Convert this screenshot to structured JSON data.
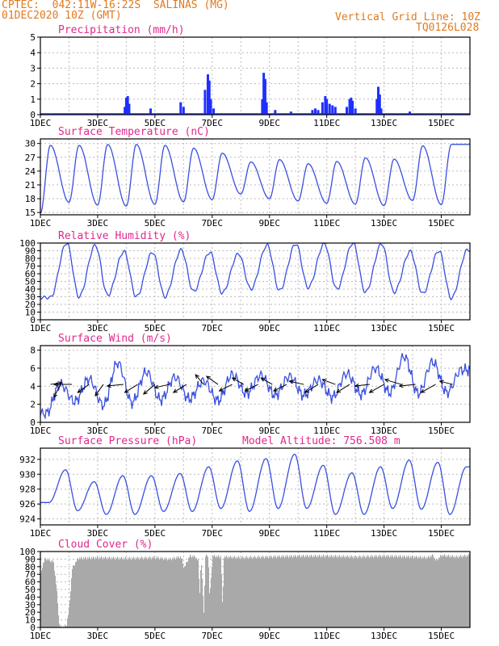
{
  "header": {
    "line1": "CPTEC:  042:11W-16:22S  SALINAS (MG)",
    "line2": "01DEC2020 10Z (GMT)",
    "right1": "Vertical Grid Line: 10Z",
    "right2": "TQ0126L028"
  },
  "x_labels": [
    "1DEC",
    "3DEC",
    "5DEC",
    "7DEC",
    "9DEC",
    "11DEC",
    "13DEC",
    "15DEC"
  ],
  "colors": {
    "title": "#e0288c",
    "header": "#e07a1f",
    "series": "#3a4fe0",
    "bars": "#1f2fff",
    "cloud": "#a9a9a9"
  },
  "chart_data": [
    {
      "type": "bar",
      "title": "Precipitation (mm/h)",
      "ylim": [
        0,
        5
      ],
      "yticks": [
        0,
        1,
        2,
        3,
        4,
        5
      ],
      "bars": [
        {
          "day": 3.95,
          "value": 0.5
        },
        {
          "day": 4.0,
          "value": 1.1
        },
        {
          "day": 4.05,
          "value": 1.2
        },
        {
          "day": 4.1,
          "value": 0.7
        },
        {
          "day": 4.85,
          "value": 0.4
        },
        {
          "day": 5.9,
          "value": 0.8
        },
        {
          "day": 6.0,
          "value": 0.5
        },
        {
          "day": 6.75,
          "value": 1.6
        },
        {
          "day": 6.85,
          "value": 2.6
        },
        {
          "day": 6.9,
          "value": 2.2
        },
        {
          "day": 6.95,
          "value": 1.0
        },
        {
          "day": 7.05,
          "value": 0.4
        },
        {
          "day": 8.75,
          "value": 1.0
        },
        {
          "day": 8.8,
          "value": 2.7
        },
        {
          "day": 8.85,
          "value": 2.3
        },
        {
          "day": 8.9,
          "value": 0.8
        },
        {
          "day": 9.2,
          "value": 0.3
        },
        {
          "day": 9.75,
          "value": 0.2
        },
        {
          "day": 10.5,
          "value": 0.3
        },
        {
          "day": 10.6,
          "value": 0.4
        },
        {
          "day": 10.7,
          "value": 0.3
        },
        {
          "day": 10.85,
          "value": 0.8
        },
        {
          "day": 10.95,
          "value": 1.2
        },
        {
          "day": 11.0,
          "value": 1.0
        },
        {
          "day": 11.1,
          "value": 0.7
        },
        {
          "day": 11.2,
          "value": 0.6
        },
        {
          "day": 11.3,
          "value": 0.5
        },
        {
          "day": 11.7,
          "value": 0.5
        },
        {
          "day": 11.8,
          "value": 1.0
        },
        {
          "day": 11.85,
          "value": 1.1
        },
        {
          "day": 11.9,
          "value": 0.9
        },
        {
          "day": 12.0,
          "value": 0.4
        },
        {
          "day": 12.75,
          "value": 1.0
        },
        {
          "day": 12.8,
          "value": 1.8
        },
        {
          "day": 12.85,
          "value": 1.3
        },
        {
          "day": 12.9,
          "value": 0.4
        },
        {
          "day": 13.9,
          "value": 0.2
        }
      ]
    },
    {
      "type": "line",
      "title": "Surface Temperature (nC)",
      "ylim": [
        14.5,
        31
      ],
      "yticks": [
        15,
        18,
        21,
        24,
        27,
        30
      ],
      "daily_min": [
        14.8,
        17.2,
        16.6,
        16.4,
        16.8,
        17.3,
        17.8,
        19.0,
        18.0,
        17.5,
        17.0,
        16.8,
        16.5,
        17.6,
        16.7
      ],
      "daily_max": [
        29.6,
        29.6,
        29.8,
        29.8,
        29.6,
        29.0,
        27.9,
        26.0,
        26.5,
        25.6,
        26.1,
        26.9,
        26.6,
        29.5,
        29.8
      ]
    },
    {
      "type": "line",
      "title": "Relative Humidity (%)",
      "ylim": [
        0,
        100
      ],
      "yticks": [
        0,
        10,
        20,
        30,
        40,
        50,
        60,
        70,
        80,
        90,
        100
      ],
      "daily_min": [
        29,
        30,
        32,
        30,
        30,
        37,
        35,
        40,
        38,
        42,
        40,
        36,
        36,
        34,
        28
      ],
      "daily_max": [
        100,
        97,
        89,
        88,
        91,
        88,
        86,
        97,
        99,
        99,
        100,
        99,
        89,
        90,
        91
      ]
    },
    {
      "type": "line",
      "title": "Surface Wind (m/s)",
      "ylim": [
        0,
        8.5
      ],
      "yticks": [
        0,
        2,
        4,
        6,
        8
      ],
      "daily_max": [
        4.2,
        4.8,
        6.6,
        5.6,
        5.0,
        4.6,
        5.3,
        5.2,
        5.1,
        4.7,
        5.4,
        6.0,
        7.3,
        6.7,
        5.8
      ],
      "daily_min": [
        1.0,
        2.3,
        1.9,
        2.2,
        2.5,
        2.6,
        2.4,
        3.2,
        3.0,
        3.0,
        2.8,
        3.1,
        3.3,
        3.2,
        3.3
      ],
      "arrows": [
        {
          "day": 1.35,
          "dx": 14,
          "dy": -2
        },
        {
          "day": 1.7,
          "dx": -8,
          "dy": 16
        },
        {
          "day": 2.1,
          "dx": -22,
          "dy": 0
        },
        {
          "day": 2.7,
          "dx": -14,
          "dy": 10
        },
        {
          "day": 3.2,
          "dx": -10,
          "dy": 14
        },
        {
          "day": 3.9,
          "dx": -20,
          "dy": 2
        },
        {
          "day": 4.4,
          "dx": -16,
          "dy": 10
        },
        {
          "day": 5.0,
          "dx": -14,
          "dy": 12
        },
        {
          "day": 5.5,
          "dx": -18,
          "dy": 4
        },
        {
          "day": 6.1,
          "dx": -16,
          "dy": 10
        },
        {
          "day": 6.7,
          "dx": -10,
          "dy": -12
        },
        {
          "day": 7.2,
          "dx": -14,
          "dy": -10
        },
        {
          "day": 7.7,
          "dx": -16,
          "dy": 8
        },
        {
          "day": 8.1,
          "dx": -14,
          "dy": -8
        },
        {
          "day": 8.6,
          "dx": -16,
          "dy": 8
        },
        {
          "day": 9.1,
          "dx": -14,
          "dy": -8
        },
        {
          "day": 9.6,
          "dx": -16,
          "dy": 8
        },
        {
          "day": 10.2,
          "dx": -18,
          "dy": -4
        },
        {
          "day": 10.7,
          "dx": -16,
          "dy": 10
        },
        {
          "day": 11.3,
          "dx": -16,
          "dy": -6
        },
        {
          "day": 11.8,
          "dx": -16,
          "dy": 10
        },
        {
          "day": 12.5,
          "dx": -18,
          "dy": 2
        },
        {
          "day": 13.0,
          "dx": -18,
          "dy": 10
        },
        {
          "day": 13.6,
          "dx": -20,
          "dy": -6
        },
        {
          "day": 14.1,
          "dx": -20,
          "dy": 2
        },
        {
          "day": 14.8,
          "dx": -18,
          "dy": 10
        },
        {
          "day": 15.4,
          "dx": -16,
          "dy": -4
        }
      ]
    },
    {
      "type": "line",
      "title": "Surface Pressure (hPa)",
      "subtitle": "Model Altitude: 756.508  m",
      "ylim": [
        923.2,
        933.5
      ],
      "yticks": [
        924,
        926,
        928,
        930,
        932
      ],
      "daily_max": [
        930.6,
        929.0,
        929.8,
        929.8,
        930.1,
        931.0,
        931.8,
        932.1,
        932.7,
        931.2,
        930.2,
        931.0,
        931.9,
        931.6,
        931.0
      ],
      "daily_min": [
        926.2,
        925.1,
        924.6,
        924.6,
        925.0,
        925.0,
        925.4,
        925.0,
        925.4,
        925.4,
        924.6,
        924.6,
        925.4,
        925.3,
        924.6
      ]
    },
    {
      "type": "area",
      "title": "Cloud Cover (%)",
      "ylim": [
        0,
        100
      ],
      "yticks": [
        0,
        10,
        20,
        30,
        40,
        50,
        60,
        70,
        80,
        90,
        100
      ],
      "keyframes": [
        [
          1.0,
          70
        ],
        [
          1.05,
          82
        ],
        [
          1.15,
          93
        ],
        [
          1.45,
          88
        ],
        [
          1.55,
          55
        ],
        [
          1.65,
          5
        ],
        [
          1.75,
          2
        ],
        [
          1.9,
          5
        ],
        [
          2.0,
          30
        ],
        [
          2.1,
          80
        ],
        [
          2.3,
          93
        ],
        [
          3.0,
          94
        ],
        [
          4.0,
          93
        ],
        [
          5.0,
          94
        ],
        [
          5.5,
          92
        ],
        [
          5.9,
          95
        ],
        [
          6.0,
          80
        ],
        [
          6.2,
          96
        ],
        [
          6.4,
          95
        ],
        [
          6.5,
          90
        ],
        [
          6.55,
          45
        ],
        [
          6.6,
          93
        ],
        [
          6.7,
          20
        ],
        [
          6.75,
          96
        ],
        [
          6.85,
          97
        ],
        [
          6.9,
          40
        ],
        [
          7.0,
          96
        ],
        [
          7.3,
          95
        ],
        [
          7.35,
          25
        ],
        [
          7.4,
          95
        ],
        [
          8.0,
          94
        ],
        [
          9.0,
          95
        ],
        [
          10.0,
          96
        ],
        [
          11.0,
          96
        ],
        [
          12.0,
          95
        ],
        [
          13.0,
          96
        ],
        [
          14.0,
          95
        ],
        [
          14.5,
          94
        ],
        [
          14.7,
          97
        ],
        [
          14.8,
          90
        ],
        [
          15.0,
          97
        ],
        [
          15.5,
          95
        ],
        [
          16.0,
          97
        ]
      ]
    }
  ]
}
